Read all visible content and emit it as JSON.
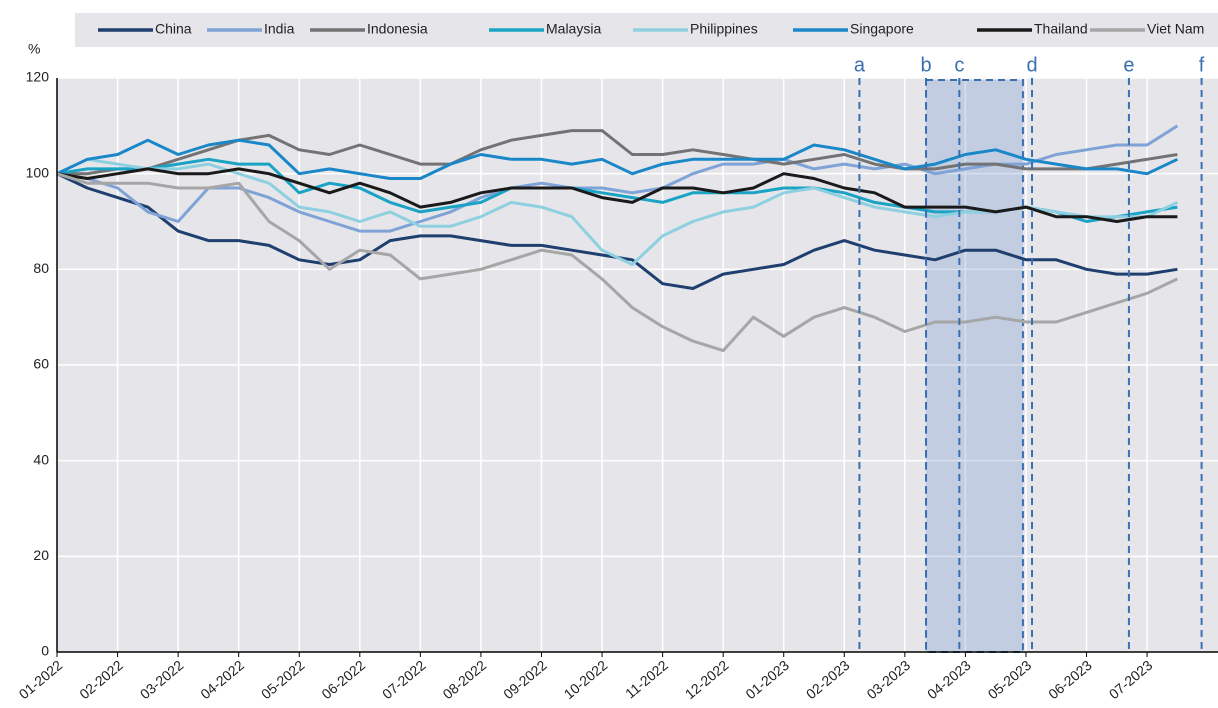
{
  "chart_data": {
    "type": "line",
    "y_label": "%",
    "categories": [
      "01-2022",
      null,
      "02-2022",
      null,
      "03-2022",
      null,
      "04-2022",
      null,
      "05-2022",
      null,
      "06-2022",
      null,
      "07-2022",
      null,
      "08-2022",
      null,
      "09-2022",
      null,
      "10-2022",
      null,
      "11-2022",
      null,
      "12-2022",
      null,
      "01-2023",
      null,
      "02-2023",
      null,
      "03-2023",
      null,
      "04-2023",
      null,
      "05-2023",
      null,
      "06-2023",
      null,
      "07-2023",
      null
    ],
    "series": [
      {
        "name": "China",
        "color": "#1f3f6e",
        "values": [
          100,
          97,
          95,
          93,
          88,
          86,
          86,
          85,
          82,
          81,
          82,
          86,
          87,
          87,
          86,
          85,
          85,
          84,
          83,
          82,
          77,
          76,
          79,
          80,
          81,
          84,
          86,
          84,
          83,
          82,
          84,
          84,
          82,
          82,
          80,
          79,
          79,
          80
        ]
      },
      {
        "name": "India",
        "color": "#7fa3d6",
        "values": [
          100,
          99,
          97,
          92,
          90,
          97,
          97,
          95,
          92,
          90,
          88,
          88,
          90,
          92,
          95,
          97,
          98,
          97,
          97,
          96,
          97,
          100,
          102,
          102,
          103,
          101,
          102,
          101,
          102,
          100,
          101,
          102,
          102,
          104,
          105,
          106,
          106,
          110
        ]
      },
      {
        "name": "Indonesia",
        "color": "#737373",
        "values": [
          100,
          100,
          101,
          101,
          103,
          105,
          107,
          108,
          105,
          104,
          106,
          104,
          102,
          102,
          105,
          107,
          108,
          109,
          109,
          104,
          104,
          105,
          104,
          103,
          102,
          103,
          104,
          102,
          101,
          101,
          102,
          102,
          101,
          101,
          101,
          102,
          103,
          104
        ]
      },
      {
        "name": "Malaysia",
        "color": "#1aa3c4",
        "values": [
          100,
          101,
          101,
          101,
          102,
          103,
          102,
          102,
          96,
          98,
          97,
          94,
          92,
          93,
          94,
          97,
          97,
          97,
          96,
          95,
          94,
          96,
          96,
          96,
          97,
          97,
          96,
          94,
          93,
          92,
          92,
          92,
          93,
          92,
          90,
          91,
          92,
          93
        ]
      },
      {
        "name": "Philippines",
        "color": "#8fd0e0",
        "values": [
          100,
          103,
          102,
          101,
          101,
          102,
          100,
          98,
          93,
          92,
          90,
          92,
          89,
          89,
          91,
          94,
          93,
          91,
          84,
          81,
          87,
          90,
          92,
          93,
          96,
          97,
          95,
          93,
          92,
          91,
          92,
          92,
          93,
          92,
          91,
          91,
          91,
          94
        ]
      },
      {
        "name": "Singapore",
        "color": "#1a87c8",
        "values": [
          100,
          103,
          104,
          107,
          104,
          106,
          107,
          106,
          100,
          101,
          100,
          99,
          99,
          102,
          104,
          103,
          103,
          102,
          103,
          100,
          102,
          103,
          103,
          103,
          103,
          106,
          105,
          103,
          101,
          102,
          104,
          105,
          103,
          102,
          101,
          101,
          100,
          103
        ]
      },
      {
        "name": "Thailand",
        "color": "#1a1a1a",
        "values": [
          100,
          99,
          100,
          101,
          100,
          100,
          101,
          100,
          98,
          96,
          98,
          96,
          93,
          94,
          96,
          97,
          97,
          97,
          95,
          94,
          97,
          97,
          96,
          97,
          100,
          99,
          97,
          96,
          93,
          93,
          93,
          92,
          93,
          91,
          91,
          90,
          91,
          91
        ]
      },
      {
        "name": "Viet Nam",
        "color": "#a6a6a6",
        "values": [
          100,
          98,
          98,
          98,
          97,
          97,
          98,
          90,
          86,
          80,
          84,
          83,
          78,
          79,
          80,
          82,
          84,
          83,
          78,
          72,
          68,
          65,
          63,
          70,
          66,
          70,
          72,
          70,
          67,
          69,
          69,
          70,
          69,
          69,
          71,
          73,
          75,
          78
        ]
      }
    ],
    "ylim": [
      0,
      120
    ],
    "yticks": [
      0,
      20,
      40,
      60,
      80,
      100,
      120
    ],
    "grid": true,
    "annotations": [
      {
        "label": "a",
        "x": 26.5
      },
      {
        "label": "b",
        "x": 28.7
      },
      {
        "label": "c",
        "x": 29.8
      },
      {
        "label": "d",
        "x": 32.2
      },
      {
        "label": "e",
        "x": 35.4
      },
      {
        "label": "f",
        "x": 37.8
      }
    ],
    "shaded_range": [
      28.7,
      31.9
    ]
  }
}
